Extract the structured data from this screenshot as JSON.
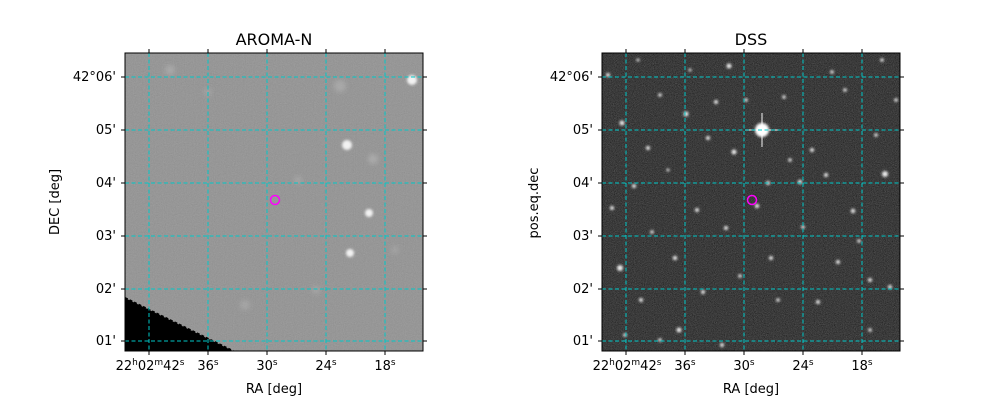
{
  "panels": [
    {
      "title": "AROMA-N",
      "xlabel": "RA [deg]",
      "ylabel": "DEC [deg]",
      "x_ticks": [
        "42",
        "36",
        "30",
        "24",
        "18"
      ],
      "y_ticks": [
        "42°06'",
        "05'",
        "04'",
        "03'",
        "02'",
        "01'"
      ]
    },
    {
      "title": "DSS",
      "xlabel": "RA [deg]",
      "ylabel": "pos.eq.dec",
      "x_ticks": [
        "42",
        "36",
        "30",
        "24",
        "18"
      ],
      "y_ticks": [
        "42°06'",
        "05'",
        "04'",
        "03'",
        "02'",
        "01'"
      ]
    }
  ],
  "ra_hours": "22",
  "ra_minutes": "02",
  "ra_h_unit": "h",
  "ra_m_unit": "m",
  "ra_s_unit": "s",
  "colors": {
    "grid": "#00c8c8",
    "marker": "#ff00ff"
  }
}
